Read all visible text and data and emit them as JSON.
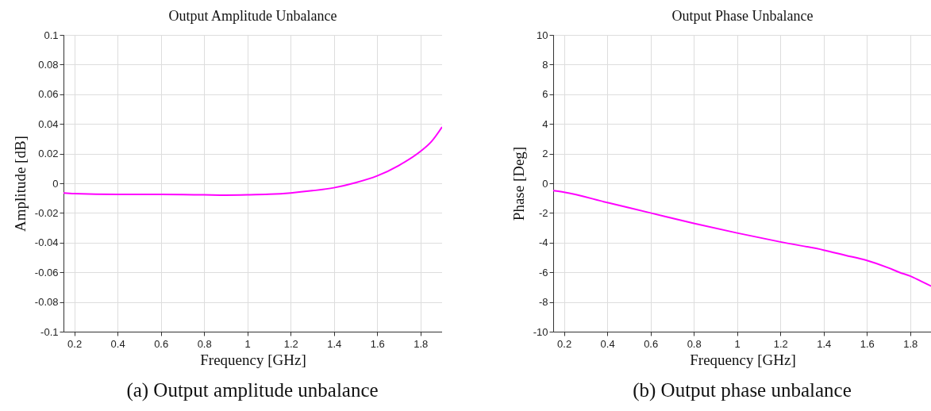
{
  "chart_data": [
    {
      "type": "line",
      "title": "Output Amplitude Unbalance",
      "xlabel": "Frequency [GHz]",
      "ylabel": "Amplitude [dB]",
      "x": [
        0.15,
        0.2,
        0.4,
        0.6,
        0.8,
        0.9,
        1.0,
        1.1,
        1.2,
        1.3,
        1.4,
        1.5,
        1.6,
        1.7,
        1.8,
        1.85,
        1.9
      ],
      "series": [
        {
          "color": "#ff00ff",
          "values": [
            -0.0065,
            -0.007,
            -0.0075,
            -0.0075,
            -0.0078,
            -0.008,
            -0.0078,
            -0.0074,
            -0.0065,
            -0.005,
            -0.003,
            0.0004,
            0.005,
            0.012,
            0.0215,
            0.028,
            0.038
          ]
        }
      ],
      "xlim": [
        0.15,
        1.9
      ],
      "xticks": [
        0.2,
        0.4,
        0.6,
        0.8,
        1,
        1.2,
        1.4,
        1.6,
        1.8
      ],
      "ylim": [
        -0.1,
        0.1
      ],
      "yticks": [
        -0.1,
        -0.08,
        -0.06,
        -0.04,
        -0.02,
        0,
        0.02,
        0.04,
        0.06,
        0.08,
        0.1
      ],
      "grid": true,
      "annotations": [
        "(a) Output amplitude unbalance"
      ]
    },
    {
      "type": "line",
      "title": "Output Phase Unbalance",
      "xlabel": "Frequency [GHz]",
      "ylabel": "Phase [Deg]",
      "x": [
        0.15,
        0.2,
        0.4,
        0.6,
        0.8,
        1.0,
        1.2,
        1.4,
        1.5,
        1.6,
        1.7,
        1.75,
        1.8,
        1.85,
        1.9
      ],
      "series": [
        {
          "color": "#ff00ff",
          "values": [
            -0.5,
            -0.6,
            -1.3,
            -2.0,
            -2.7,
            -3.35,
            -3.95,
            -4.5,
            -4.85,
            -5.2,
            -5.7,
            -6.0,
            -6.25,
            -6.6,
            -6.95
          ]
        }
      ],
      "xlim": [
        0.15,
        1.9
      ],
      "xticks": [
        0.2,
        0.4,
        0.6,
        0.8,
        1,
        1.2,
        1.4,
        1.6,
        1.8
      ],
      "ylim": [
        -10,
        10
      ],
      "yticks": [
        -10,
        -8,
        -6,
        -4,
        -2,
        0,
        2,
        4,
        6,
        8,
        10
      ],
      "grid": true,
      "annotations": [
        "(b) Output phase unbalance"
      ]
    }
  ]
}
